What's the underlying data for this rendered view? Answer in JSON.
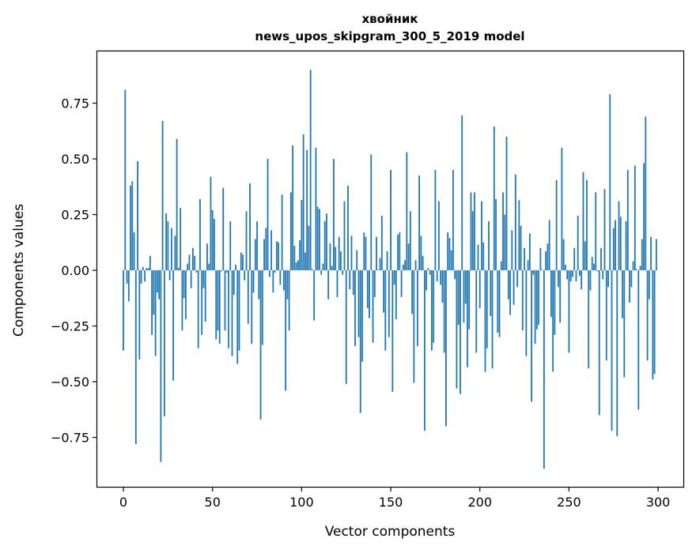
{
  "chart_data": {
    "type": "bar",
    "title": "хвойник",
    "subtitle": "news_upos_skipgram_300_5_2019 model",
    "xlabel": "Vector components",
    "ylabel": "Components values",
    "xlim": [
      -15.1,
      314.6
    ],
    "ylim": [
      -0.975,
      0.986
    ],
    "grid": false,
    "bar_color": "#1f77b4",
    "xticks": [
      {
        "value": 0,
        "label": "0"
      },
      {
        "value": 50,
        "label": "50"
      },
      {
        "value": 100,
        "label": "100"
      },
      {
        "value": 150,
        "label": "150"
      },
      {
        "value": 200,
        "label": "200"
      },
      {
        "value": 250,
        "label": "250"
      },
      {
        "value": 300,
        "label": "300"
      }
    ],
    "yticks": [
      {
        "value": -0.75,
        "label": "−0.75"
      },
      {
        "value": -0.5,
        "label": "−0.50"
      },
      {
        "value": -0.25,
        "label": "−0.25"
      },
      {
        "value": 0,
        "label": "0.00"
      },
      {
        "value": 0.25,
        "label": "0.25"
      },
      {
        "value": 0.5,
        "label": "0.50"
      },
      {
        "value": 0.75,
        "label": "0.75"
      }
    ],
    "values": [
      -0.36,
      0.81,
      -0.06,
      -0.14,
      0.38,
      0.4,
      0.17,
      -0.78,
      0.49,
      -0.4,
      -0.06,
      0.015,
      -0.05,
      0.01,
      0.01,
      0.065,
      -0.29,
      -0.2,
      -0.385,
      -0.1,
      -0.13,
      -0.86,
      0.67,
      -0.655,
      0.255,
      0.22,
      -0.045,
      0.19,
      -0.495,
      0.155,
      0.59,
      0.01,
      0.28,
      -0.27,
      -0.125,
      -0.22,
      0.03,
      0.07,
      -0.08,
      0.1,
      0.065,
      -0.01,
      -0.35,
      0.32,
      -0.29,
      -0.08,
      -0.23,
      0.12,
      0.03,
      0.42,
      0.27,
      0.23,
      -0.31,
      -0.27,
      -0.33,
      -0.005,
      0.37,
      -0.27,
      -0.01,
      -0.35,
      0.22,
      -0.385,
      -0.11,
      0.025,
      -0.42,
      -0.36,
      0.08,
      0.07,
      -0.045,
      0.265,
      -0.24,
      0.39,
      -0.33,
      -0.1,
      0.14,
      0.22,
      -0.13,
      -0.67,
      -0.335,
      0.14,
      0.19,
      0.5,
      -0.03,
      0.18,
      -0.1,
      -0.01,
      0.13,
      0.125,
      -0.065,
      0.34,
      -0.09,
      -0.54,
      -0.13,
      -0.27,
      0.35,
      0.56,
      0.11,
      0.035,
      0.045,
      0.135,
      0.315,
      0.61,
      0.08,
      0.54,
      0.2,
      0.9,
      0.005,
      -0.225,
      0.55,
      0.285,
      0.275,
      -0.02,
      0.03,
      0.22,
      0.255,
      -0.13,
      0.12,
      0.02,
      0.5,
      0.105,
      -0.12,
      0.15,
      0.085,
      -0.02,
      0.31,
      -0.51,
      0.38,
      -0.085,
      0.155,
      -0.11,
      -0.34,
      0.09,
      -0.3,
      -0.64,
      -0.41,
      0.17,
      0.15,
      -0.17,
      -0.215,
      0.52,
      -0.325,
      -0.12,
      0.15,
      0.003,
      0.055,
      0.245,
      -0.19,
      -0.36,
      0.085,
      -0.3,
      0.45,
      -0.545,
      -0.065,
      -0.22,
      0.16,
      0.17,
      -0.12,
      0.025,
      0.045,
      0.53,
      0.12,
      0.265,
      -0.195,
      -0.505,
      0.045,
      -0.34,
      0.425,
      0.155,
      0.065,
      -0.72,
      -0.09,
      0.01,
      -0.02,
      -0.36,
      -0.325,
      0.45,
      -0.05,
      0.31,
      -0.065,
      -0.145,
      -0.37,
      -0.7,
      0.17,
      0.145,
      0.09,
      0.45,
      -0.04,
      -0.53,
      -0.245,
      -0.555,
      0.695,
      -0.235,
      -0.15,
      -0.435,
      -0.265,
      0.35,
      0.265,
      0.35,
      -0.37,
      0.115,
      -0.17,
      0.31,
      0.125,
      -0.455,
      -0.35,
      0.22,
      -0.205,
      -0.44,
      0.645,
      0.32,
      -0.28,
      -0.3,
      0.04,
      0.35,
      0.25,
      0.6,
      -0.13,
      -0.2,
      0.18,
      -0.155,
      0.43,
      -0.075,
      0.315,
      0.2,
      -0.27,
      0.1,
      -0.385,
      0.045,
      0.165,
      -0.59,
      -0.02,
      -0.33,
      -0.265,
      -0.245,
      0.1,
      0.003,
      -0.89,
      0.085,
      0.12,
      0.225,
      -0.21,
      -0.455,
      -0.29,
      0.405,
      -0.075,
      -0.235,
      0.55,
      0.14,
      0.025,
      -0.04,
      -0.37,
      -0.05,
      -0.03,
      0.1,
      -0.05,
      0.245,
      -0.025,
      -0.085,
      0.44,
      0.13,
      0.405,
      -0.44,
      -0.09,
      0.06,
      0.03,
      0.35,
      -0.005,
      -0.65,
      0.1,
      -0.04,
      0.365,
      -0.405,
      -0.075,
      0.79,
      -0.72,
      0.19,
      0.225,
      -0.745,
      0.31,
      0.24,
      -0.215,
      -0.48,
      0.22,
      0.45,
      -0.145,
      -0.075,
      0.04,
      0.47,
      0.005,
      -0.625,
      0.02,
      0.14,
      0.48,
      0.69,
      -0.405,
      -0.13,
      0.15,
      -0.49,
      -0.465,
      0.14
    ]
  }
}
